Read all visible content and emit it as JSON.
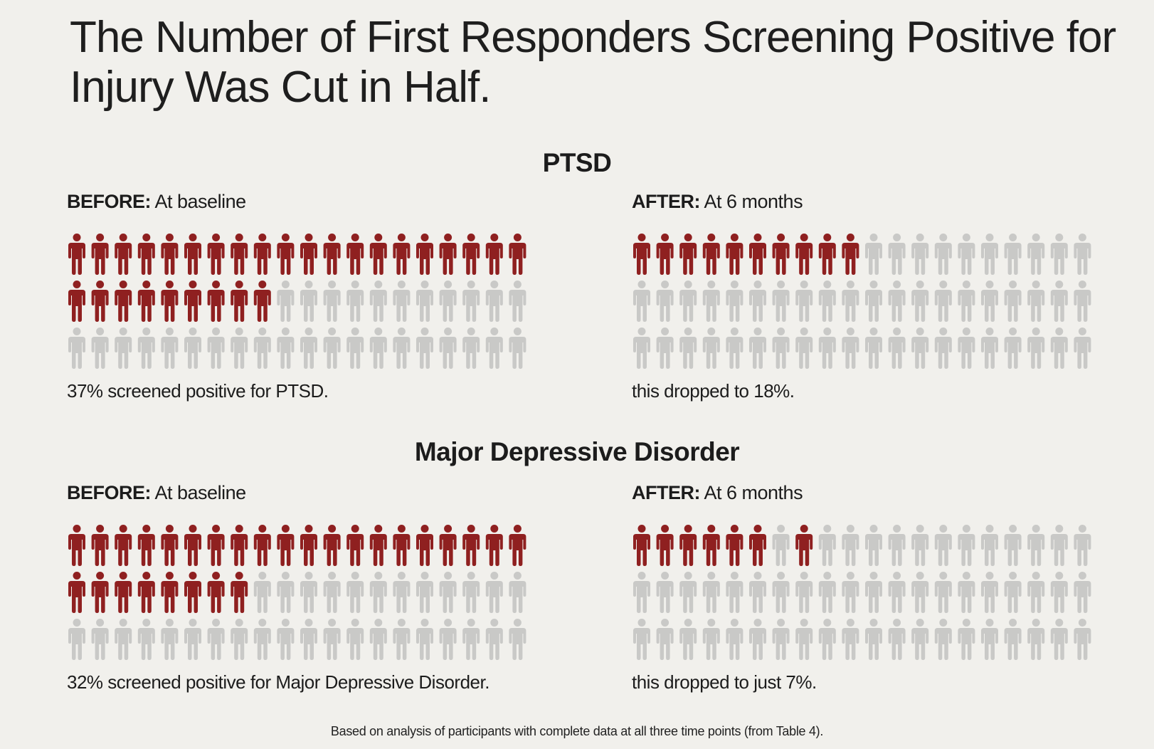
{
  "title": "The Number of First Responders Screening Positive for Injury Was Cut in Half.",
  "footnote": "Based on analysis of participants with complete data at all three time points (from Table 4).",
  "colors": {
    "positive": "#8f2020",
    "negative": "#c9c9c7",
    "background": "#f1f0ec"
  },
  "icon": "person-icon",
  "chart_data": [
    {
      "type": "pictograph",
      "section": "PTSD",
      "icons_per_row": 20,
      "rows": 3,
      "panels": [
        {
          "label_bold": "BEFORE:",
          "label_rest": " At baseline",
          "positive_icons": 29,
          "caption": "37% screened positive for PTSD.",
          "value_percent": 37
        },
        {
          "label_bold": "AFTER:",
          "label_rest": " At 6 months",
          "positive_icons": 10,
          "caption": "this dropped to 18%.",
          "value_percent": 18
        }
      ]
    },
    {
      "type": "pictograph",
      "section": "Major Depressive Disorder",
      "icons_per_row": 20,
      "rows": 3,
      "panels": [
        {
          "label_bold": "BEFORE:",
          "label_rest": " At baseline",
          "positive_icons": 28,
          "caption": "32% screened positive for Major Depressive Disorder.",
          "value_percent": 32
        },
        {
          "label_bold": "AFTER:",
          "label_rest": " At 6 months",
          "positive_icons": 6,
          "positive_extra_indices": [
            7
          ],
          "caption": "this dropped to just 7%.",
          "value_percent": 7
        }
      ]
    }
  ]
}
